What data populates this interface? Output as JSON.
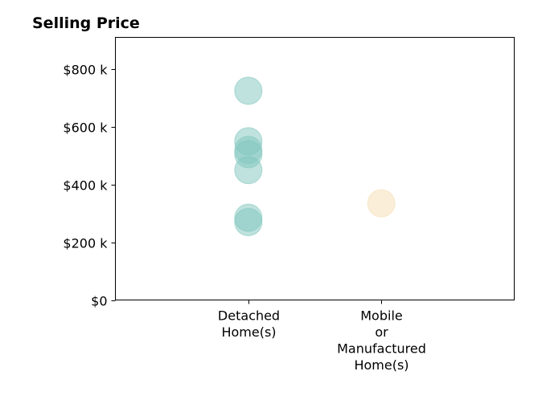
{
  "chart_data": {
    "type": "scatter",
    "title": "Selling Price",
    "xlabel": "",
    "ylabel": "",
    "categories": [
      [
        "Detached",
        "Home(s)"
      ],
      [
        "Mobile",
        "or",
        "Manufactured",
        "Home(s)"
      ]
    ],
    "x_range": [
      -1,
      2
    ],
    "ylim": [
      0,
      910000
    ],
    "y_ticks": [
      0,
      200000,
      400000,
      600000,
      800000
    ],
    "y_tick_labels": [
      "$0",
      "$200 k",
      "$400 k",
      "$600 k",
      "$800 k"
    ],
    "series": [
      {
        "category_index": 0,
        "color": "#80c6bd",
        "values": [
          725000,
          550000,
          520000,
          505000,
          450000,
          285000,
          270000
        ]
      },
      {
        "category_index": 1,
        "color": "#f5deb3",
        "values": [
          335000
        ]
      }
    ],
    "marker_alpha": 0.5,
    "grid": false,
    "legend": "none"
  }
}
